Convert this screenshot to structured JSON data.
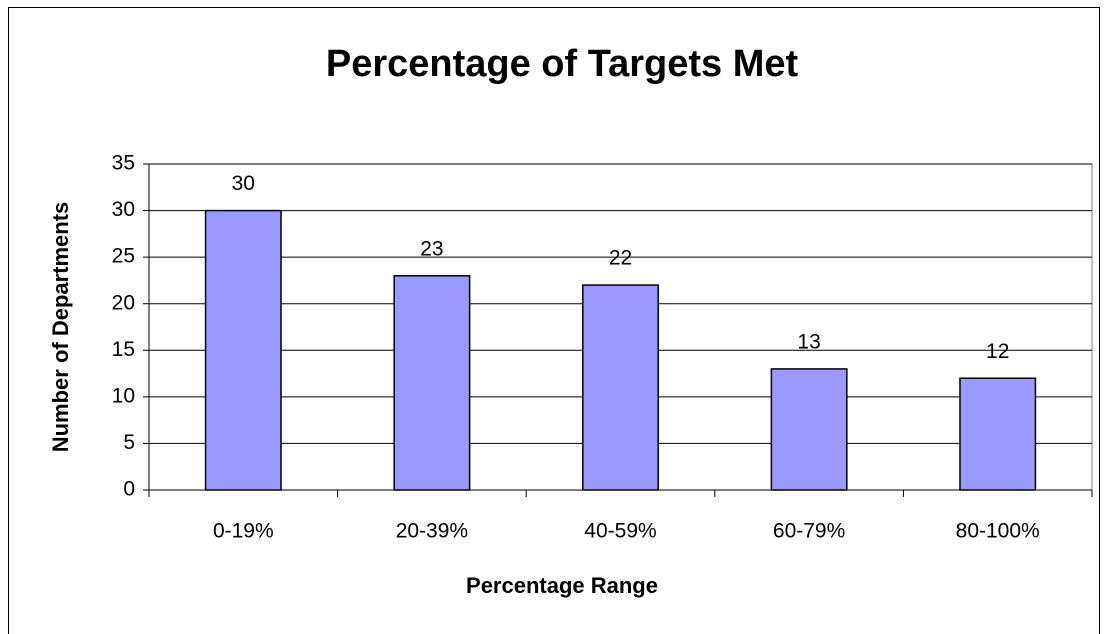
{
  "chart_data": {
    "type": "bar",
    "title": "Percentage of Targets Met",
    "x_label": "Percentage Range",
    "y_label": "Number of Departments",
    "categories": [
      "0-19%",
      "20-39%",
      "40-59%",
      "60-79%",
      "80-100%"
    ],
    "values": [
      30,
      23,
      22,
      13,
      12
    ],
    "color": "#9999ff",
    "ylim": [
      0,
      35
    ],
    "yticks": [
      0,
      5,
      10,
      15,
      20,
      25,
      30,
      35
    ],
    "grid": true
  }
}
